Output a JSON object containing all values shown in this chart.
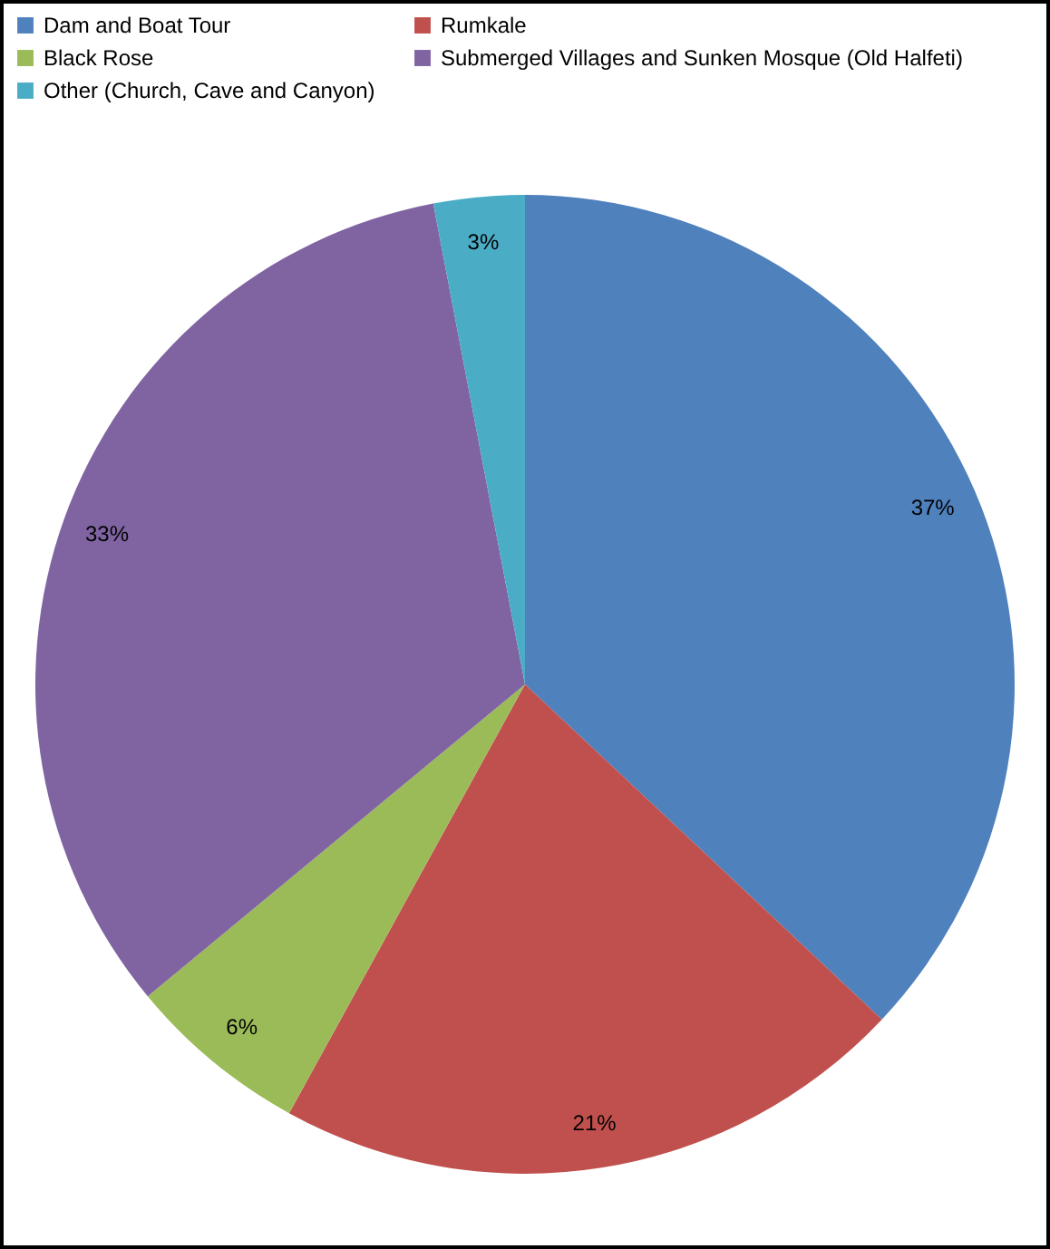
{
  "chart_data": {
    "type": "pie",
    "categories": [
      "Dam and Boat Tour",
      "Rumkale",
      "Black Rose",
      "Submerged Villages and Sunken Mosque (Old Halfeti)",
      "Other (Church, Cave and Canyon)"
    ],
    "values": [
      37,
      21,
      6,
      33,
      3
    ],
    "value_labels": [
      "37%",
      "21%",
      "6%",
      "33%",
      "3%"
    ],
    "colors": [
      "#4f81bd",
      "#c0504d",
      "#9bbb59",
      "#8064a2",
      "#4bacc6"
    ],
    "legend": "top"
  }
}
